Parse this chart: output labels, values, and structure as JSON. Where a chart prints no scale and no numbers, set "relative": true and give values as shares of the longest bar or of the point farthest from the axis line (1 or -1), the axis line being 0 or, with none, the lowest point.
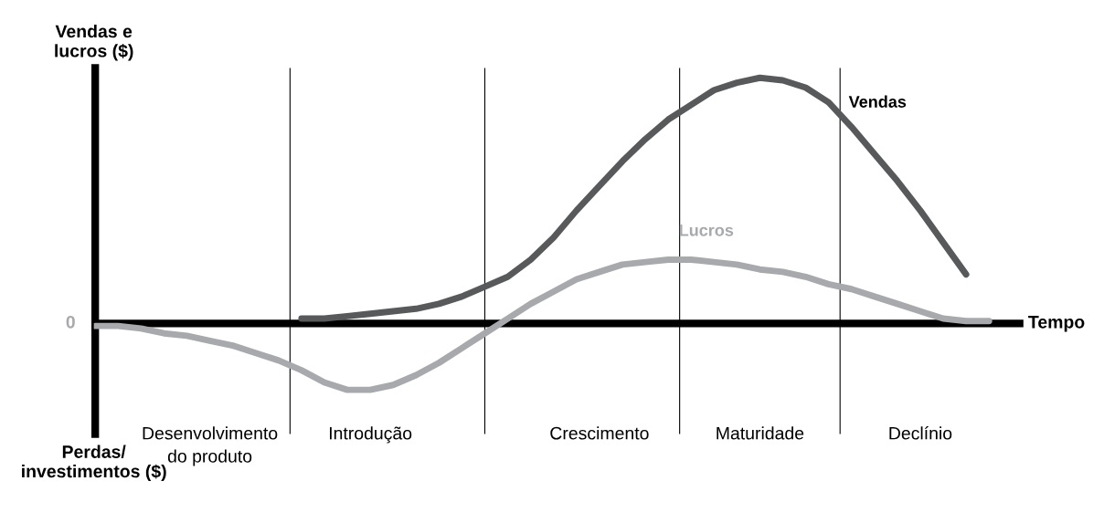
{
  "chart_data": {
    "type": "line",
    "relative": true,
    "ylabel": "Vendas e\nlucros ($)",
    "xlabel": "Tempo",
    "marker": "none",
    "line_style": "solid",
    "categories": [
      null,
      null,
      null,
      null,
      null,
      "Desenvolvimento\ndo produto",
      null,
      null,
      null,
      null,
      null,
      null,
      "Introdução",
      null,
      null,
      null,
      null,
      null,
      null,
      null,
      null,
      null,
      "Crescimento",
      null,
      null,
      null,
      null,
      null,
      null,
      "Maturidade",
      null,
      null,
      null,
      null,
      null,
      null,
      "Declínio",
      null,
      null,
      null,
      null
    ],
    "series": [
      {
        "name": "Vendas",
        "color": "#58595b",
        "values": [
          null,
          null,
          null,
          null,
          null,
          null,
          null,
          null,
          null,
          0.02,
          0.02,
          0.03,
          0.04,
          0.05,
          0.06,
          0.08,
          0.11,
          0.15,
          0.19,
          0.26,
          0.35,
          0.46,
          0.56,
          0.66,
          0.75,
          0.83,
          0.89,
          0.95,
          0.98,
          1.0,
          0.99,
          0.96,
          0.9,
          0.8,
          0.69,
          0.58,
          0.46,
          0.33,
          0.2,
          null,
          null
        ]
      },
      {
        "name": "Lucros",
        "color": "#a7a9ac",
        "values": [
          -0.01,
          -0.01,
          -0.02,
          -0.04,
          -0.05,
          -0.07,
          -0.09,
          -0.12,
          -0.15,
          -0.19,
          -0.24,
          -0.27,
          -0.27,
          -0.25,
          -0.21,
          -0.16,
          -0.1,
          -0.04,
          0.02,
          0.08,
          0.13,
          0.18,
          0.21,
          0.24,
          0.25,
          0.26,
          0.26,
          0.25,
          0.24,
          0.22,
          0.21,
          0.19,
          0.16,
          0.14,
          0.11,
          0.08,
          0.05,
          0.02,
          0.01,
          0.01,
          null
        ]
      }
    ],
    "annotations": [
      "0",
      "Perdas/\ninvestimentos ($)"
    ]
  }
}
